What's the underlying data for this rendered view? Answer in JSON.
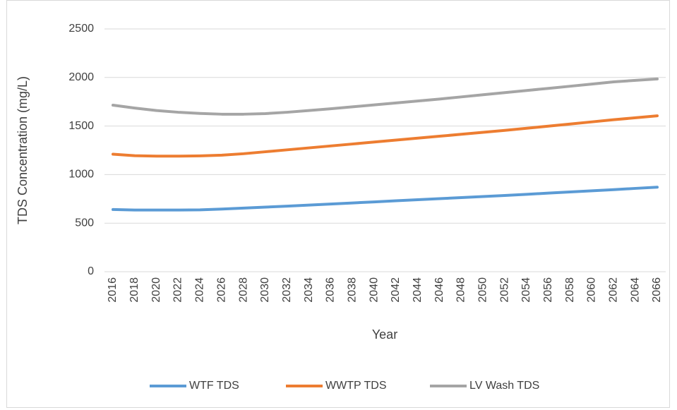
{
  "chart_data": {
    "type": "line",
    "y_label": "TDS Concentration (mg/L)",
    "x_label": "Year",
    "x": [
      2016,
      2018,
      2020,
      2022,
      2024,
      2026,
      2028,
      2030,
      2032,
      2034,
      2036,
      2038,
      2040,
      2042,
      2044,
      2046,
      2048,
      2050,
      2052,
      2054,
      2056,
      2058,
      2060,
      2062,
      2064,
      2066
    ],
    "series": [
      {
        "name": "WTF TDS",
        "color": "#5b9bd5",
        "values": [
          640,
          635,
          635,
          635,
          637,
          645,
          655,
          665,
          675,
          686,
          697,
          708,
          719,
          730,
          741,
          752,
          763,
          774,
          785,
          797,
          809,
          821,
          833,
          845,
          858,
          870
        ]
      },
      {
        "name": "WWTP TDS",
        "color": "#ed7d31",
        "values": [
          1210,
          1195,
          1190,
          1190,
          1193,
          1200,
          1215,
          1235,
          1255,
          1275,
          1295,
          1315,
          1335,
          1355,
          1375,
          1395,
          1415,
          1435,
          1455,
          1477,
          1499,
          1521,
          1543,
          1565,
          1585,
          1605
        ]
      },
      {
        "name": "LV Wash TDS",
        "color": "#a5a5a5",
        "values": [
          1715,
          1685,
          1660,
          1642,
          1630,
          1622,
          1622,
          1628,
          1642,
          1660,
          1678,
          1698,
          1718,
          1738,
          1758,
          1778,
          1800,
          1822,
          1844,
          1866,
          1888,
          1910,
          1932,
          1955,
          1970,
          1985
        ]
      }
    ],
    "xlim": [
      2016,
      2066
    ],
    "xticks": [
      2016,
      2018,
      2020,
      2022,
      2024,
      2026,
      2028,
      2030,
      2032,
      2034,
      2036,
      2038,
      2040,
      2042,
      2044,
      2046,
      2048,
      2050,
      2052,
      2054,
      2056,
      2058,
      2060,
      2062,
      2064,
      2066
    ],
    "ylim": [
      0,
      2500
    ],
    "yticks": [
      0,
      500,
      1000,
      1500,
      2000,
      2500
    ],
    "grid": true,
    "legend": "bottom"
  }
}
